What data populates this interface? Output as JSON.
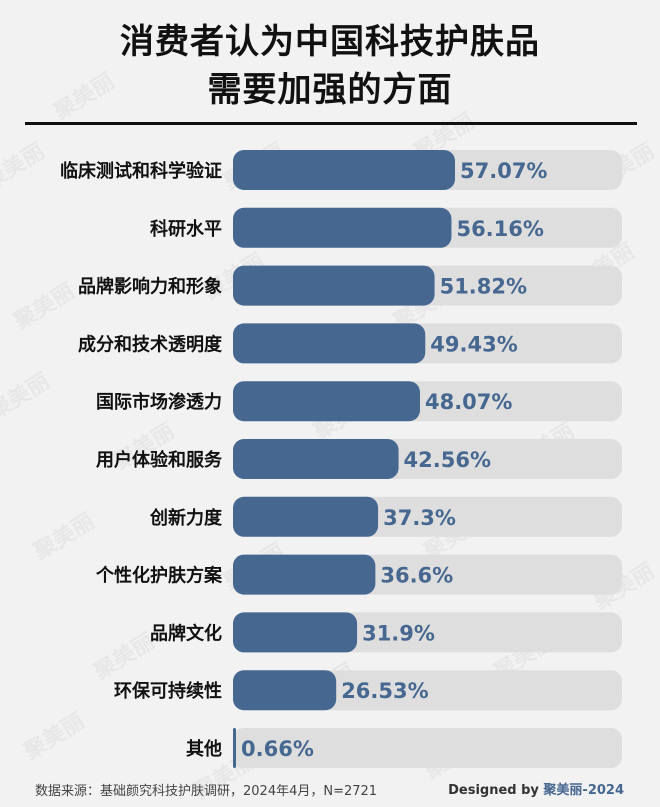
{
  "title": {
    "line1": "消费者认为中国科技护肤品",
    "line2": "需要加强的方面"
  },
  "chart_data": {
    "type": "bar",
    "orientation": "horizontal",
    "categories": [
      "临床测试和科学验证",
      "科研水平",
      "品牌影响力和形象",
      "成分和技术透明度",
      "国际市场渗透力",
      "用户体验和服务",
      "创新力度",
      "个性化护肤方案",
      "品牌文化",
      "环保可持续性",
      "其他"
    ],
    "values": [
      57.07,
      56.16,
      51.82,
      49.43,
      48.07,
      42.56,
      37.3,
      36.6,
      31.9,
      26.53,
      0.66
    ],
    "value_labels": [
      "57.07%",
      "56.16%",
      "51.82%",
      "49.43%",
      "48.07%",
      "42.56%",
      "37.3%",
      "36.6%",
      "31.9%",
      "26.53%",
      "0.66%"
    ],
    "xlim": [
      0,
      100
    ],
    "grid": false,
    "legend": "none",
    "colors": {
      "bar": "#466790",
      "track": "#dedede",
      "value_text": "#466790"
    }
  },
  "footer": {
    "source": "数据来源：基础颜究科技护肤调研，2024年4月，N=2721",
    "designed_by": "Designed by ",
    "brand": "聚美丽-2024"
  },
  "watermark": "聚美丽"
}
